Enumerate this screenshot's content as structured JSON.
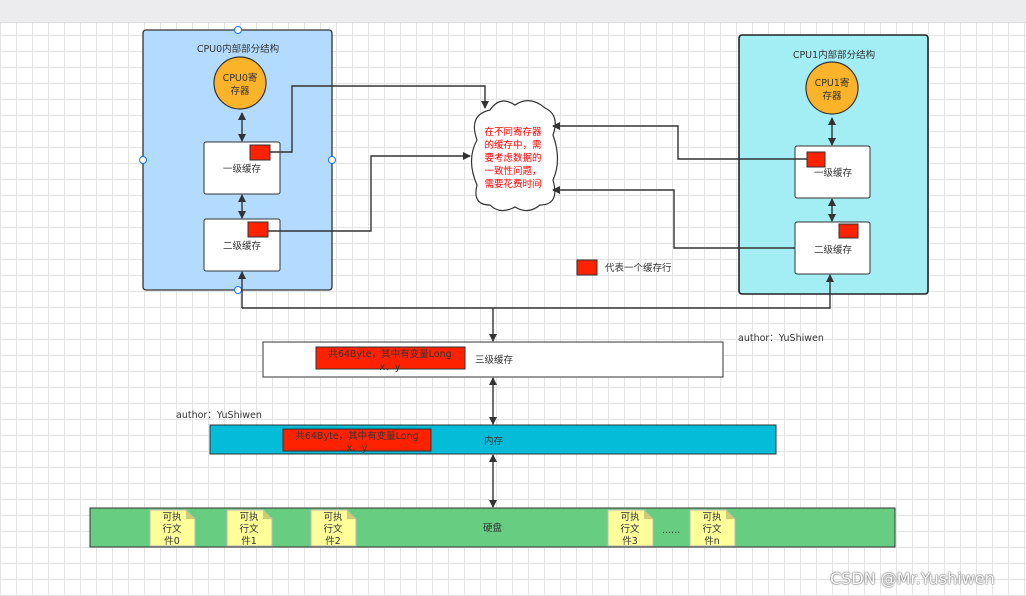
{
  "cpu0": {
    "title": "CPU0内部部分结构",
    "register": [
      "CPU0寄",
      "存器"
    ],
    "l1": "一级缓存",
    "l2": "二级缓存"
  },
  "cpu1": {
    "title": "CPU1内部部分结构",
    "register": [
      "CPU1寄",
      "存器"
    ],
    "l1": "一级缓存",
    "l2": "二级缓存"
  },
  "cloud": {
    "lines": [
      "在不同寄存器",
      "的缓存中，需",
      "要考虑数据的",
      "一致性问题，",
      "需要花费时间"
    ]
  },
  "legend": {
    "label": "代表一个缓存行"
  },
  "l3": {
    "label": "三级缓存",
    "cacheline": [
      "共64Byte，其中有变量Long",
      "x、y"
    ],
    "author": "author：YuShiwen"
  },
  "memory": {
    "label": "内存",
    "cacheline": [
      "共64Byte，其中有变量Long",
      "x、y"
    ],
    "author": "author：YuShiwen"
  },
  "disk": {
    "label": "硬盘",
    "files": [
      [
        "可执",
        "行文",
        "件0"
      ],
      [
        "可执",
        "行文",
        "件1"
      ],
      [
        "可执",
        "行文",
        "件2"
      ],
      [
        "可执",
        "行文",
        "件3"
      ],
      [
        "可执",
        "行文",
        "件n"
      ]
    ],
    "ellipsis": "......"
  },
  "watermark": "CSDN @Mr.Yushiwen",
  "colors": {
    "cpu0_fill": "#b3dbff",
    "cpu1_fill": "#a3eef4",
    "register": "#fbb42a",
    "cacheline": "#ff2200",
    "memory": "#02bcd8",
    "disk": "#67cd80",
    "file": "#ffff99"
  }
}
